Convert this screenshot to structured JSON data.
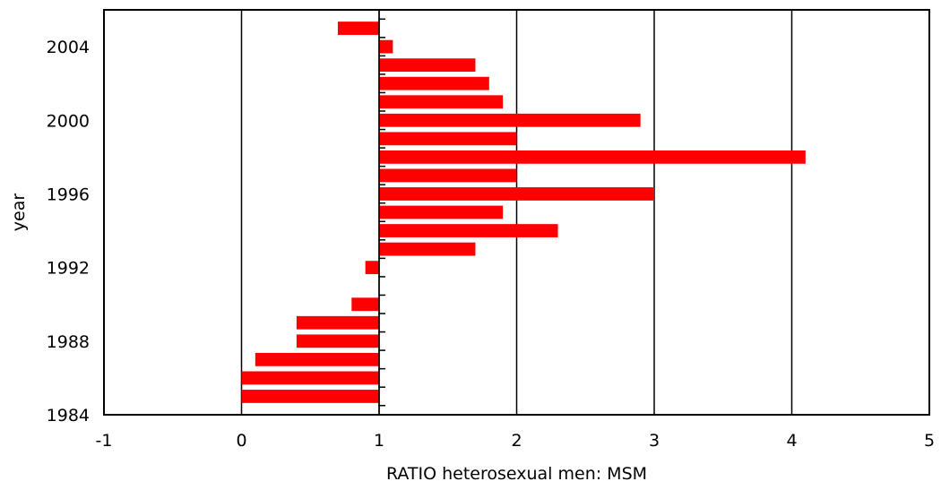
{
  "chart_data": {
    "type": "bar",
    "orientation": "horizontal",
    "xlabel": "RATIO heterosexual men: MSM",
    "ylabel": "year",
    "xlim": [
      -1,
      5
    ],
    "ylim": [
      1984,
      2006
    ],
    "x_ticks": [
      "-1",
      "0",
      "1",
      "2",
      "3",
      "4",
      "5"
    ],
    "y_ticks": [
      "1984",
      "1988",
      "1992",
      "1996",
      "2000",
      "2004"
    ],
    "baseline": 1,
    "grid": "vertical",
    "bar_color": "#ff0000",
    "categories": [
      1985,
      1986,
      1987,
      1988,
      1989,
      1990,
      1991,
      1992,
      1993,
      1994,
      1995,
      1996,
      1997,
      1998,
      1999,
      2000,
      2001,
      2002,
      2003,
      2004,
      2005
    ],
    "values": [
      0.0,
      0.0,
      0.1,
      0.4,
      0.4,
      0.8,
      null,
      0.9,
      1.7,
      2.3,
      1.9,
      3.0,
      2.0,
      4.1,
      2.0,
      2.9,
      1.9,
      1.8,
      1.7,
      1.1,
      0.7
    ]
  }
}
